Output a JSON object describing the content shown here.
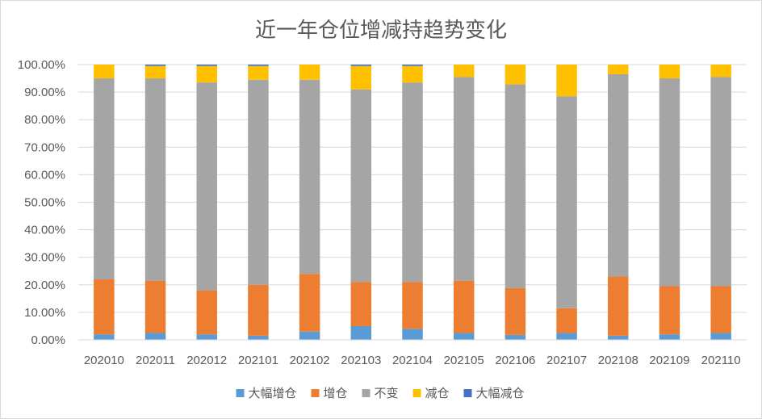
{
  "chart_data": {
    "type": "bar",
    "stacked": true,
    "percent": true,
    "title": "近一年仓位增减持趋势变化",
    "xlabel": "",
    "ylabel": "",
    "ylim": [
      0,
      100
    ],
    "y_ticks": [
      "0.00%",
      "10.00%",
      "20.00%",
      "30.00%",
      "40.00%",
      "50.00%",
      "60.00%",
      "70.00%",
      "80.00%",
      "90.00%",
      "100.00%"
    ],
    "categories": [
      "202010",
      "202011",
      "202012",
      "202101",
      "202102",
      "202103",
      "202104",
      "202105",
      "202106",
      "202107",
      "202108",
      "202109",
      "202110"
    ],
    "series": [
      {
        "name": "大幅增仓",
        "color": "#5b9bd5",
        "values": [
          2.0,
          2.5,
          2.0,
          1.5,
          3.0,
          5.0,
          4.0,
          2.5,
          1.8,
          2.5,
          1.5,
          2.0,
          2.5
        ]
      },
      {
        "name": "增仓",
        "color": "#ed7d31",
        "values": [
          20.0,
          19.0,
          16.0,
          18.5,
          21.0,
          16.0,
          17.0,
          19.0,
          17.0,
          9.0,
          21.5,
          17.5,
          17.0
        ]
      },
      {
        "name": "不变",
        "color": "#a5a5a5",
        "values": [
          73.0,
          73.5,
          75.5,
          74.5,
          70.5,
          70.0,
          72.5,
          74.0,
          74.0,
          77.0,
          73.5,
          75.5,
          76.0
        ]
      },
      {
        "name": "减仓",
        "color": "#ffc000",
        "values": [
          5.0,
          4.5,
          6.0,
          5.0,
          5.5,
          8.5,
          6.0,
          4.5,
          7.2,
          11.5,
          3.5,
          5.0,
          4.5
        ]
      },
      {
        "name": "大幅减仓",
        "color": "#4472c4",
        "values": [
          0.0,
          0.5,
          0.5,
          0.5,
          0.0,
          0.5,
          0.5,
          0.0,
          0.0,
          0.0,
          0.0,
          0.0,
          0.0
        ]
      }
    ],
    "legend_position": "bottom",
    "grid": true
  }
}
